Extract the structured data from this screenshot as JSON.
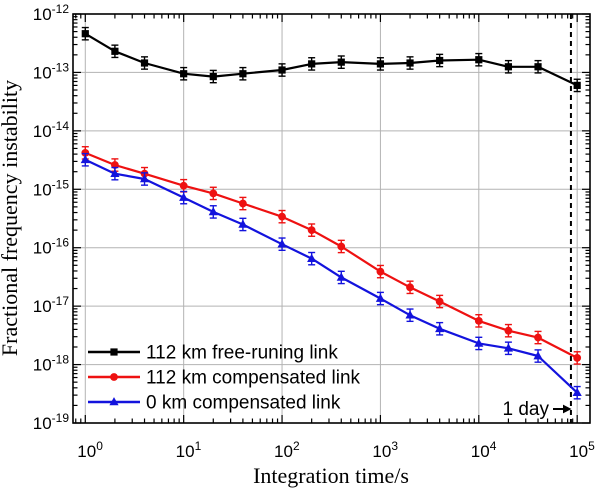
{
  "chart_data": {
    "type": "line",
    "title": "",
    "xlabel": "Integration time/s",
    "ylabel": "Fractional frequency instability",
    "xscale": "log",
    "yscale": "log",
    "xlim": [
      0.75,
      135000
    ],
    "ylim": [
      1e-19,
      1e-12
    ],
    "x_major_ticks": [
      1,
      10,
      100,
      1000,
      10000,
      100000
    ],
    "y_major_exponents": [
      -12,
      -13,
      -14,
      -15,
      -16,
      -17,
      -18,
      -19
    ],
    "grid": true,
    "grid_color": "#b3b3b3",
    "legend_position": "bottom-left-inside",
    "x": [
      1,
      2,
      4,
      10,
      20,
      40,
      100,
      200,
      400,
      1000,
      2000,
      4000,
      10000,
      20000,
      40000,
      100000
    ],
    "series": [
      {
        "name": "112 km free-runing link",
        "color": "#000000",
        "marker": "square",
        "values": [
          4.6e-13,
          2.3e-13,
          1.45e-13,
          9.5e-14,
          8.5e-14,
          9.5e-14,
          1.1e-13,
          1.4e-13,
          1.5e-13,
          1.4e-13,
          1.45e-13,
          1.6e-13,
          1.65e-13,
          1.25e-13,
          1.25e-13,
          6e-14
        ]
      },
      {
        "name": "112 km compensated link",
        "color": "#ee1111",
        "marker": "circle",
        "values": [
          4.2e-15,
          2.6e-15,
          1.85e-15,
          1.15e-15,
          8.5e-16,
          5.7e-16,
          3.4e-16,
          2e-16,
          1.05e-16,
          3.9e-17,
          2.1e-17,
          1.2e-17,
          5.6e-18,
          3.8e-18,
          2.9e-18,
          1.3e-18
        ]
      },
      {
        "name": "0 km compensated link",
        "color": "#1313dd",
        "marker": "triangle",
        "values": [
          3.2e-15,
          1.85e-15,
          1.5e-15,
          7.2e-16,
          4.1e-16,
          2.5e-16,
          1.15e-16,
          6.5e-17,
          3.1e-17,
          1.35e-17,
          7e-18,
          4.1e-18,
          2.3e-18,
          1.9e-18,
          1.4e-18,
          3.3e-19
        ]
      }
    ],
    "error_bars": {
      "show": true,
      "approx_factor": 1.15
    },
    "annotations": {
      "one_day": {
        "label": "1 day",
        "x_value": 86400,
        "line_style": "dashed"
      }
    }
  }
}
